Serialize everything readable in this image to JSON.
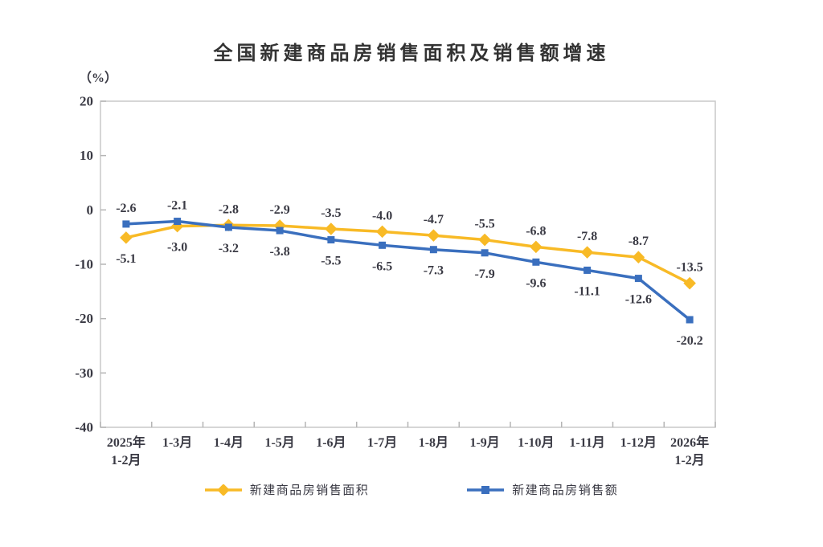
{
  "page": {
    "background": "#ffffff"
  },
  "chart_data": {
    "type": "line",
    "title": "全国新建商品房销售面积及销售额增速",
    "ylabel": "（%）",
    "xlabel": "",
    "ylim": [
      -40,
      20
    ],
    "yticks": [
      20,
      10,
      0,
      -10,
      -20,
      -30,
      -40
    ],
    "grid": false,
    "data_labels": true,
    "legend_position": "bottom",
    "categories": [
      "2025年\n1-2月",
      "1-3月",
      "1-4月",
      "1-5月",
      "1-6月",
      "1-7月",
      "1-8月",
      "1-9月",
      "1-10月",
      "1-11月",
      "1-12月",
      "2026年\n1-2月"
    ],
    "series": [
      {
        "name": "新建商品房销售面积",
        "marker": "diamond",
        "color": "#F8BA26",
        "values": [
          -5.1,
          -3.0,
          -2.8,
          -2.9,
          -3.5,
          -4.0,
          -4.7,
          -5.5,
          -6.8,
          -7.8,
          -8.7,
          -13.5
        ]
      },
      {
        "name": "新建商品房销售额",
        "marker": "square",
        "color": "#3A6FBE",
        "values": [
          -2.6,
          -2.1,
          -3.2,
          -3.8,
          -5.5,
          -6.5,
          -7.3,
          -7.9,
          -9.6,
          -11.1,
          -12.6,
          -20.2
        ]
      }
    ],
    "axis_color": "#C9C9C9",
    "tick_color": "#B5B5B5",
    "text_color": "#3A3A44"
  }
}
